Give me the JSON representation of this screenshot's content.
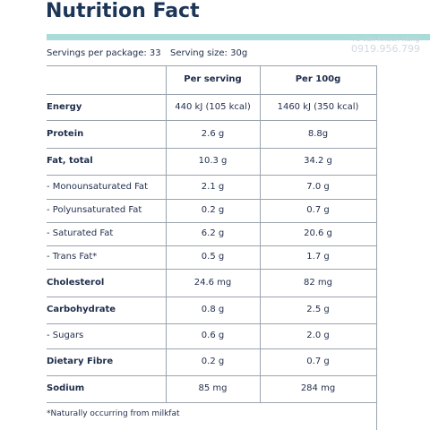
{
  "header": {
    "title": "Nutrition Fact",
    "servings_per_package": "Servings per package: 33",
    "serving_size": "Serving size: 30g"
  },
  "watermark": {
    "line1": "Tư vấn khách hàng",
    "line2": "0919.956.799"
  },
  "table": {
    "columns": [
      "Per serving",
      "Per 100g"
    ],
    "rows": [
      {
        "label": "Energy",
        "per_serving": "440 kJ (105 kcal)",
        "per_100g": "1460 kJ (350 kcal)",
        "bold": true
      },
      {
        "label": "Protein",
        "per_serving": "2.6 g",
        "per_100g": "8.8g",
        "bold": true
      },
      {
        "label": "Fat, total",
        "per_serving": "10.3 g",
        "per_100g": "34.2 g",
        "bold": true
      },
      {
        "label": "- Monounsaturated Fat",
        "per_serving": "2.1 g",
        "per_100g": "7.0 g",
        "bold": false
      },
      {
        "label": "- Polyunsaturated Fat",
        "per_serving": "0.2 g",
        "per_100g": "0.7 g",
        "bold": false
      },
      {
        "label": "- Saturated Fat",
        "per_serving": "6.2 g",
        "per_100g": "20.6 g",
        "bold": false
      },
      {
        "label": "- Trans Fat*",
        "per_serving": "0.5 g",
        "per_100g": "1.7 g",
        "bold": false
      },
      {
        "label": "Cholesterol",
        "per_serving": "24.6 mg",
        "per_100g": "82 mg",
        "bold": true
      },
      {
        "label": "Carbohydrate",
        "per_serving": "0.8 g",
        "per_100g": "2.5 g",
        "bold": true
      },
      {
        "label": "- Sugars",
        "per_serving": "0.6 g",
        "per_100g": "2.0 g",
        "bold": false
      },
      {
        "label": "Dietary Fibre",
        "per_serving": "0.2 g",
        "per_100g": "0.7 g",
        "bold": true
      },
      {
        "label": "Sodium",
        "per_serving": "85 mg",
        "per_100g": "284 mg",
        "bold": true
      }
    ]
  },
  "footnote": "*Naturally occurring from milkfat"
}
